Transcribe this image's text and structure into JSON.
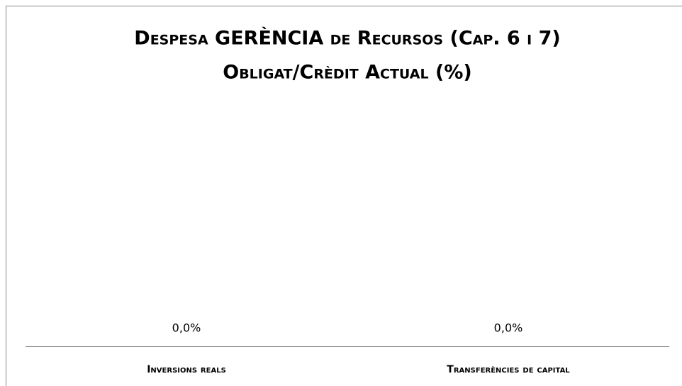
{
  "chart_data": {
    "type": "bar",
    "title": [
      "Despesa GERÈNCIA de Recursos (Cap. 6 i 7)",
      "Obligat/Crèdit Actual (%)"
    ],
    "categories": [
      "Inversions reals",
      "Transferències de capital"
    ],
    "values": [
      0,
      0
    ],
    "value_labels": [
      "0,0%",
      "0,0%"
    ],
    "color": "#4f81bd"
  }
}
